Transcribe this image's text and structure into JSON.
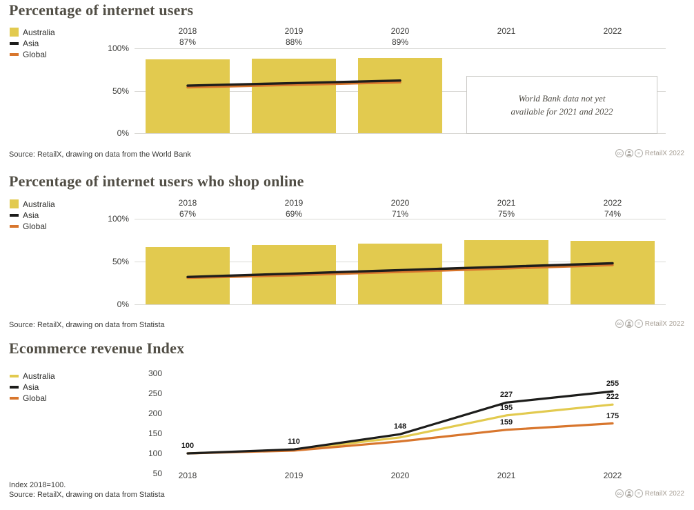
{
  "credit": {
    "text": "RetailX 2022",
    "icons": [
      {
        "name": "cc-icon",
        "glyph": "cc"
      },
      {
        "name": "attribution-icon",
        "glyph": "person"
      },
      {
        "name": "no-derivatives-icon",
        "glyph": "="
      }
    ]
  },
  "chart_data": [
    {
      "type": "bar+line",
      "title": "Percentage of internet users",
      "categories": [
        "2018",
        "2019",
        "2020",
        "2021",
        "2022"
      ],
      "category_value_labels": [
        "87%",
        "88%",
        "89%",
        "",
        ""
      ],
      "bar_series": {
        "name": "Australia",
        "color": "#e2ca4f",
        "values": [
          87,
          88,
          89,
          null,
          null
        ]
      },
      "line_series": [
        {
          "name": "Asia",
          "color": "#1d1d1b",
          "values": [
            56,
            59,
            62,
            null,
            null
          ]
        },
        {
          "name": "Global",
          "color": "#d8762d",
          "values": [
            54,
            57,
            60,
            null,
            null
          ]
        }
      ],
      "legend": [
        {
          "label": "Australia",
          "color": "#e2ca4f",
          "swatch": "square"
        },
        {
          "label": "Asia",
          "color": "#1d1d1b",
          "swatch": "line"
        },
        {
          "label": "Global",
          "color": "#d8762d",
          "swatch": "line"
        }
      ],
      "ylim": [
        0,
        100
      ],
      "yticks": [
        "0%",
        "50%",
        "100%"
      ],
      "annotation": {
        "lines": [
          "World Bank data not yet",
          "available for 2021 and 2022"
        ]
      },
      "source": "Source: RetailX, drawing on data from the World Bank"
    },
    {
      "type": "bar+line",
      "title": "Percentage of internet users who shop online",
      "categories": [
        "2018",
        "2019",
        "2020",
        "2021",
        "2022"
      ],
      "category_value_labels": [
        "67%",
        "69%",
        "71%",
        "75%",
        "74%"
      ],
      "bar_series": {
        "name": "Australia",
        "color": "#e2ca4f",
        "values": [
          67,
          69,
          71,
          75,
          74
        ]
      },
      "line_series": [
        {
          "name": "Asia",
          "color": "#1d1d1b",
          "values": [
            32,
            36,
            40,
            44,
            48
          ]
        },
        {
          "name": "Global",
          "color": "#d8762d",
          "values": [
            31,
            34,
            38,
            42,
            46
          ]
        }
      ],
      "legend": [
        {
          "label": "Australia",
          "color": "#e2ca4f",
          "swatch": "square"
        },
        {
          "label": "Asia",
          "color": "#1d1d1b",
          "swatch": "line"
        },
        {
          "label": "Global",
          "color": "#d8762d",
          "swatch": "line"
        }
      ],
      "ylim": [
        0,
        100
      ],
      "yticks": [
        "0%",
        "50%",
        "100%"
      ],
      "annotation": null,
      "source": "Source: RetailX, drawing on data from Statista"
    },
    {
      "type": "line",
      "title": "Ecommerce revenue Index",
      "categories": [
        "2018",
        "2019",
        "2020",
        "2021",
        "2022"
      ],
      "series": [
        {
          "name": "Australia",
          "color": "#e2ca4f",
          "values": [
            100,
            109,
            140,
            195,
            222
          ],
          "point_labels": [
            "",
            "",
            "",
            "195",
            "222"
          ]
        },
        {
          "name": "Asia",
          "color": "#1d1d1b",
          "values": [
            100,
            110,
            148,
            227,
            255
          ],
          "point_labels": [
            "100",
            "110",
            "148",
            "227",
            "255"
          ]
        },
        {
          "name": "Global",
          "color": "#d8762d",
          "values": [
            100,
            107,
            130,
            159,
            175
          ],
          "point_labels": [
            "",
            "",
            "",
            "159",
            "175"
          ]
        }
      ],
      "legend": [
        {
          "label": "Australia",
          "color": "#e2ca4f",
          "swatch": "line"
        },
        {
          "label": "Asia",
          "color": "#1d1d1b",
          "swatch": "line"
        },
        {
          "label": "Global",
          "color": "#d8762d",
          "swatch": "line"
        }
      ],
      "ylim": [
        50,
        300
      ],
      "yticks": [
        "50",
        "100",
        "150",
        "200",
        "250",
        "300"
      ],
      "footnote": "Index 2018=100.",
      "source": "Source: RetailX, drawing on data from Statista"
    }
  ]
}
